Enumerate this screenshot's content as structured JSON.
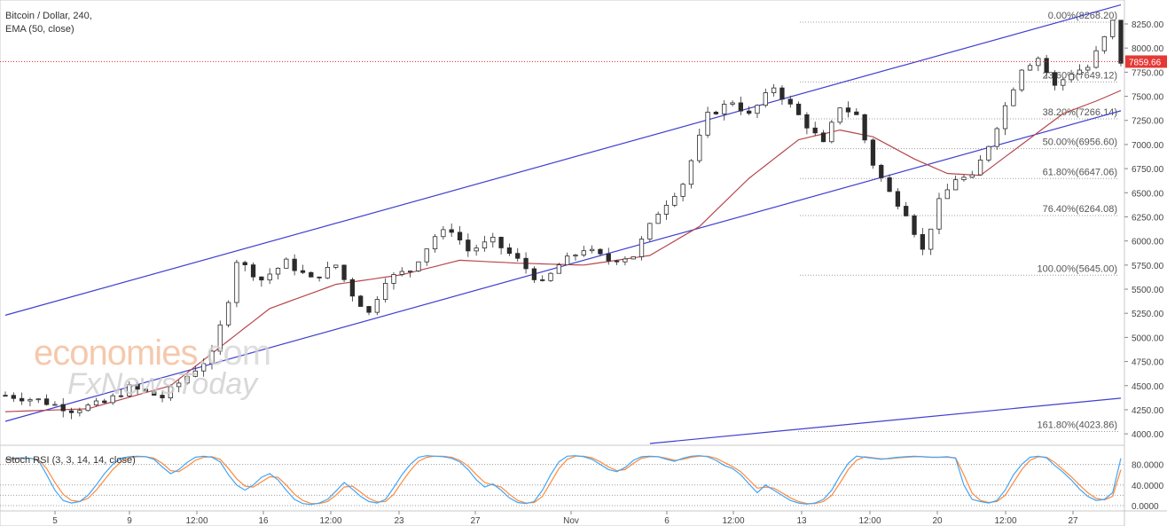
{
  "header": {
    "title": "Bitcoin / Dollar, 240,",
    "indicator": "EMA (50, close)"
  },
  "stoch_label": "Stoch RSI (3, 3, 14, 14, close)",
  "watermark": {
    "line1_a": "economies",
    "line1_b": ".com",
    "line2": "FxNewsToday"
  },
  "colors": {
    "channel": "#3f3fd0",
    "ema": "#b5474d",
    "price_line": "#e53935",
    "fib": "#9e9e9e",
    "stoch_k": "#42a5f5",
    "stoch_d": "#ff8a3d",
    "candle": "#2b2b2b",
    "price_tag": "#e53935"
  },
  "chart_data": {
    "type": "candlestick",
    "symbol": "Bitcoin / Dollar",
    "interval": "240",
    "y_ticks": [
      4000,
      4250,
      4500,
      4750,
      5000,
      5250,
      5500,
      5750,
      6000,
      6250,
      6500,
      6750,
      7000,
      7250,
      7500,
      7750,
      8000,
      8250
    ],
    "y_tick_labels": [
      "4000.00",
      "4250.00",
      "4500.00",
      "4750.00",
      "5000.00",
      "5250.00",
      "5500.00",
      "5750.00",
      "6000.00",
      "6250.00",
      "6500.00",
      "6750.00",
      "7000.00",
      "7250.00",
      "7500.00",
      "7750.00",
      "8000.00",
      "8250.00"
    ],
    "ylim": [
      3900,
      8480
    ],
    "x_labels": [
      "5",
      "9",
      "12:00",
      "16",
      "12:00",
      "23",
      "27",
      "Nov",
      "6",
      "12:00",
      "13",
      "12:00",
      "20",
      "12:00",
      "27"
    ],
    "last_price": 7859.66,
    "last_price_label": "7859.66",
    "fibonacci": [
      {
        "label": "0.00%(8268.20)",
        "price": 8268.2
      },
      {
        "label": "23.60%(7649.12)",
        "price": 7649.12
      },
      {
        "label": "38.20%(7266.14)",
        "price": 7266.14
      },
      {
        "label": "50.00%(6956.60)",
        "price": 6956.6
      },
      {
        "label": "61.80%(6647.06)",
        "price": 6647.06
      },
      {
        "label": "76.40%(6264.08)",
        "price": 6264.08
      },
      {
        "label": "100.00%(5645.00)",
        "price": 5645.0
      },
      {
        "label": "161.80%(4023.86)",
        "price": 4023.86
      }
    ],
    "price_path": [
      [
        0,
        4400
      ],
      [
        4,
        4350
      ],
      [
        8,
        4250
      ],
      [
        12,
        4320
      ],
      [
        15,
        4480
      ],
      [
        19,
        4380
      ],
      [
        22,
        4600
      ],
      [
        25,
        4820
      ],
      [
        27,
        5400
      ],
      [
        28,
        5800
      ],
      [
        31,
        5600
      ],
      [
        34,
        5780
      ],
      [
        37,
        5600
      ],
      [
        40,
        5750
      ],
      [
        42,
        5450
      ],
      [
        44,
        5250
      ],
      [
        46,
        5600
      ],
      [
        49,
        5700
      ],
      [
        52,
        6050
      ],
      [
        54,
        6120
      ],
      [
        56,
        5900
      ],
      [
        59,
        6000
      ],
      [
        62,
        5800
      ],
      [
        65,
        5550
      ],
      [
        67,
        5750
      ],
      [
        70,
        5920
      ],
      [
        73,
        5800
      ],
      [
        76,
        5850
      ],
      [
        79,
        6300
      ],
      [
        82,
        6600
      ],
      [
        85,
        7300
      ],
      [
        88,
        7450
      ],
      [
        90,
        7300
      ],
      [
        93,
        7600
      ],
      [
        96,
        7300
      ],
      [
        99,
        7000
      ],
      [
        101,
        7400
      ],
      [
        103,
        7300
      ],
      [
        105,
        6800
      ],
      [
        107,
        6500
      ],
      [
        109,
        6300
      ],
      [
        111,
        5900
      ],
      [
        113,
        6400
      ],
      [
        115,
        6650
      ],
      [
        117,
        6650
      ],
      [
        119,
        7000
      ],
      [
        121,
        7400
      ],
      [
        123,
        7800
      ],
      [
        125,
        7900
      ],
      [
        127,
        7600
      ],
      [
        129,
        7750
      ],
      [
        131,
        7800
      ],
      [
        133,
        8100
      ],
      [
        134,
        8268
      ],
      [
        135,
        7860
      ]
    ],
    "ema_path": [
      [
        0,
        4230
      ],
      [
        10,
        4260
      ],
      [
        20,
        4500
      ],
      [
        26,
        4900
      ],
      [
        32,
        5300
      ],
      [
        40,
        5550
      ],
      [
        48,
        5650
      ],
      [
        55,
        5800
      ],
      [
        62,
        5770
      ],
      [
        70,
        5750
      ],
      [
        78,
        5850
      ],
      [
        84,
        6150
      ],
      [
        90,
        6650
      ],
      [
        96,
        7050
      ],
      [
        101,
        7150
      ],
      [
        105,
        7080
      ],
      [
        110,
        6850
      ],
      [
        114,
        6700
      ],
      [
        118,
        6680
      ],
      [
        123,
        7000
      ],
      [
        128,
        7320
      ],
      [
        132,
        7450
      ],
      [
        135,
        7560
      ]
    ],
    "channel": {
      "upper": {
        "start": [
          0,
          5230
        ],
        "end": [
          135,
          8448
        ]
      },
      "lower": {
        "start": [
          0,
          4130
        ],
        "end": [
          135,
          7350
        ]
      },
      "outer": {
        "start": [
          78,
          3900
        ],
        "end": [
          135,
          4370
        ]
      }
    },
    "stoch_rsi": {
      "levels": [
        0,
        20,
        40,
        80
      ],
      "tick_labels": [
        "0.0000",
        "40.0000",
        "80.0000"
      ],
      "k": [
        90,
        92,
        93,
        92,
        88,
        60,
        30,
        10,
        5,
        8,
        20,
        40,
        62,
        80,
        92,
        95,
        96,
        95,
        90,
        75,
        62,
        70,
        84,
        94,
        96,
        94,
        85,
        60,
        40,
        30,
        40,
        55,
        62,
        50,
        30,
        12,
        4,
        2,
        5,
        12,
        28,
        45,
        32,
        18,
        8,
        5,
        12,
        35,
        60,
        80,
        94,
        97,
        96,
        95,
        92,
        85,
        70,
        50,
        36,
        42,
        30,
        15,
        6,
        4,
        8,
        30,
        60,
        85,
        96,
        97,
        95,
        90,
        80,
        70,
        66,
        74,
        88,
        95,
        96,
        95,
        90,
        86,
        92,
        96,
        97,
        95,
        88,
        78,
        72,
        60,
        42,
        25,
        40,
        30,
        20,
        10,
        5,
        3,
        5,
        12,
        30,
        58,
        82,
        96,
        94,
        92,
        90,
        92,
        94,
        95,
        96,
        95,
        94,
        94,
        95,
        92,
        40,
        12,
        8,
        5,
        10,
        30,
        60,
        80,
        94,
        96,
        93,
        78,
        65,
        50,
        32,
        18,
        10,
        12,
        25,
        92
      ],
      "d": [
        88,
        90,
        92,
        92,
        90,
        72,
        45,
        22,
        10,
        8,
        14,
        30,
        50,
        70,
        85,
        93,
        95,
        95,
        92,
        82,
        68,
        66,
        76,
        88,
        94,
        95,
        90,
        72,
        52,
        38,
        36,
        46,
        56,
        55,
        40,
        22,
        10,
        4,
        4,
        8,
        20,
        36,
        38,
        26,
        14,
        7,
        8,
        22,
        46,
        68,
        86,
        94,
        96,
        96,
        94,
        88,
        77,
        60,
        45,
        40,
        36,
        22,
        10,
        5,
        6,
        18,
        45,
        72,
        90,
        96,
        96,
        93,
        85,
        75,
        68,
        70,
        82,
        92,
        95,
        95,
        92,
        88,
        90,
        94,
        96,
        96,
        92,
        84,
        76,
        66,
        50,
        34,
        36,
        34,
        25,
        15,
        8,
        4,
        4,
        8,
        20,
        44,
        70,
        88,
        95,
        93,
        91,
        91,
        93,
        94,
        95,
        95,
        94,
        94,
        94,
        93,
        60,
        24,
        10,
        6,
        8,
        20,
        45,
        70,
        88,
        95,
        94,
        84,
        70,
        56,
        40,
        25,
        14,
        11,
        18,
        70
      ]
    }
  }
}
